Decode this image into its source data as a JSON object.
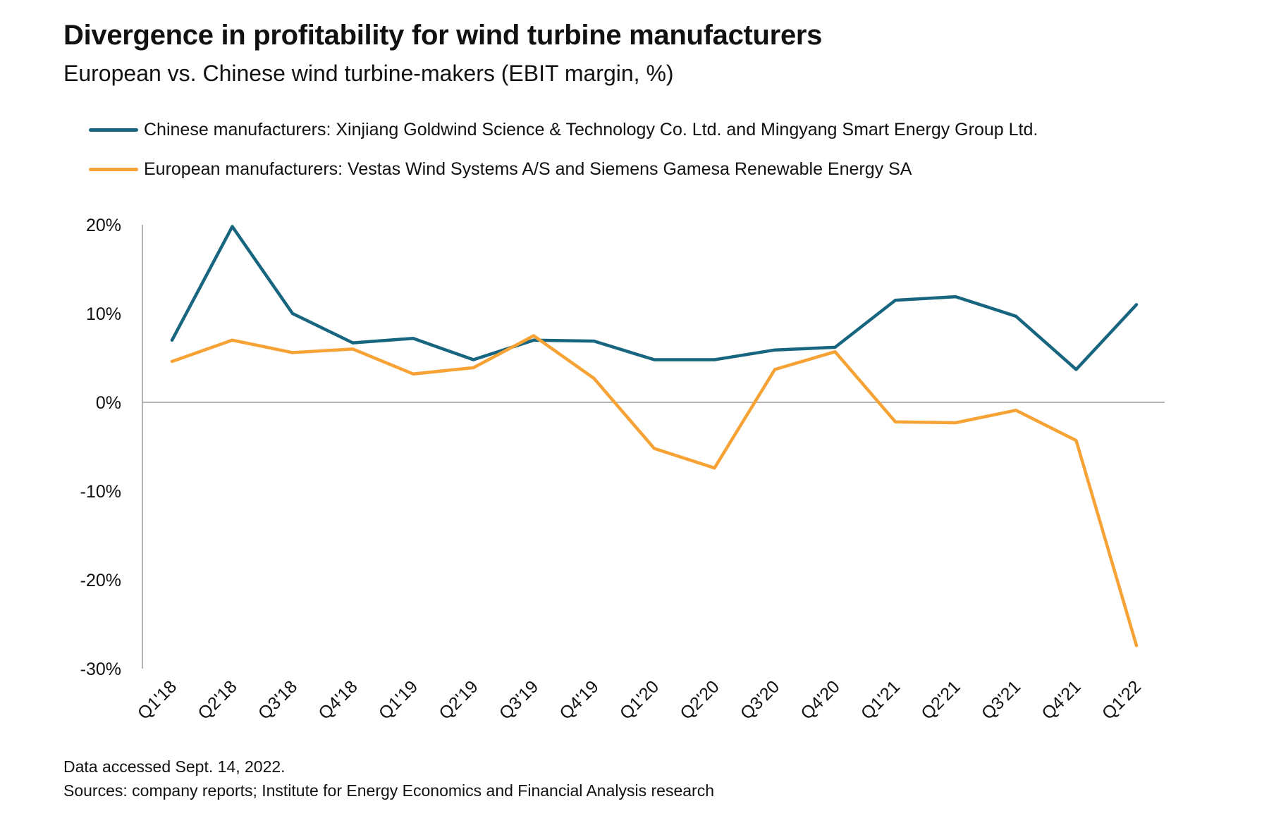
{
  "title": "Divergence in profitability for wind turbine manufacturers",
  "subtitle": "European vs. Chinese wind turbine-makers (EBIT margin, %)",
  "legend": [
    {
      "label": "Chinese manufacturers: Xinjiang Goldwind Science & Technology Co. Ltd. and Mingyang Smart Energy Group Ltd.",
      "color": "#17657f"
    },
    {
      "label": "European manufacturers: Vestas Wind Systems A/S and Siemens Gamesa Renewable Energy SA",
      "color": "#f7a235"
    }
  ],
  "footnote": {
    "accessed": "Data accessed Sept. 14, 2022.",
    "sources": "Sources: company reports; Institute for Energy Economics and Financial Analysis research"
  },
  "chart_data": {
    "type": "line",
    "title": "Divergence in profitability for wind turbine manufacturers",
    "subtitle": "European vs. Chinese wind turbine-makers (EBIT margin, %)",
    "xlabel": "",
    "ylabel": "",
    "categories": [
      "Q1'18",
      "Q2'18",
      "Q3'18",
      "Q4'18",
      "Q1'19",
      "Q2'19",
      "Q3'19",
      "Q4'19",
      "Q1'20",
      "Q2'20",
      "Q3'20",
      "Q4'20",
      "Q1'21",
      "Q2'21",
      "Q3'21",
      "Q4'21",
      "Q1'22"
    ],
    "ylim": [
      -30,
      20
    ],
    "yticks": [
      20,
      10,
      0,
      -10,
      -20,
      -30
    ],
    "ytick_labels": [
      "20%",
      "10%",
      "0%",
      "-10%",
      "-20%",
      "-30%"
    ],
    "series": [
      {
        "name": "Chinese manufacturers: Xinjiang Goldwind Science & Technology Co. Ltd. and Mingyang Smart Energy Group Ltd.",
        "color": "#17657f",
        "values": [
          7.0,
          19.8,
          10.0,
          6.7,
          7.2,
          4.8,
          7.0,
          6.9,
          4.8,
          4.8,
          5.9,
          6.2,
          11.5,
          11.9,
          9.7,
          3.7,
          11.0
        ]
      },
      {
        "name": "European manufacturers: Vestas Wind Systems A/S and Siemens Gamesa Renewable Energy SA",
        "color": "#f7a235",
        "values": [
          4.6,
          7.0,
          5.6,
          6.0,
          3.2,
          3.9,
          7.5,
          2.7,
          -5.2,
          -7.4,
          3.7,
          5.7,
          -2.2,
          -2.3,
          -0.9,
          -4.3,
          -27.4
        ]
      }
    ],
    "grid": false,
    "legend_position": "top"
  }
}
